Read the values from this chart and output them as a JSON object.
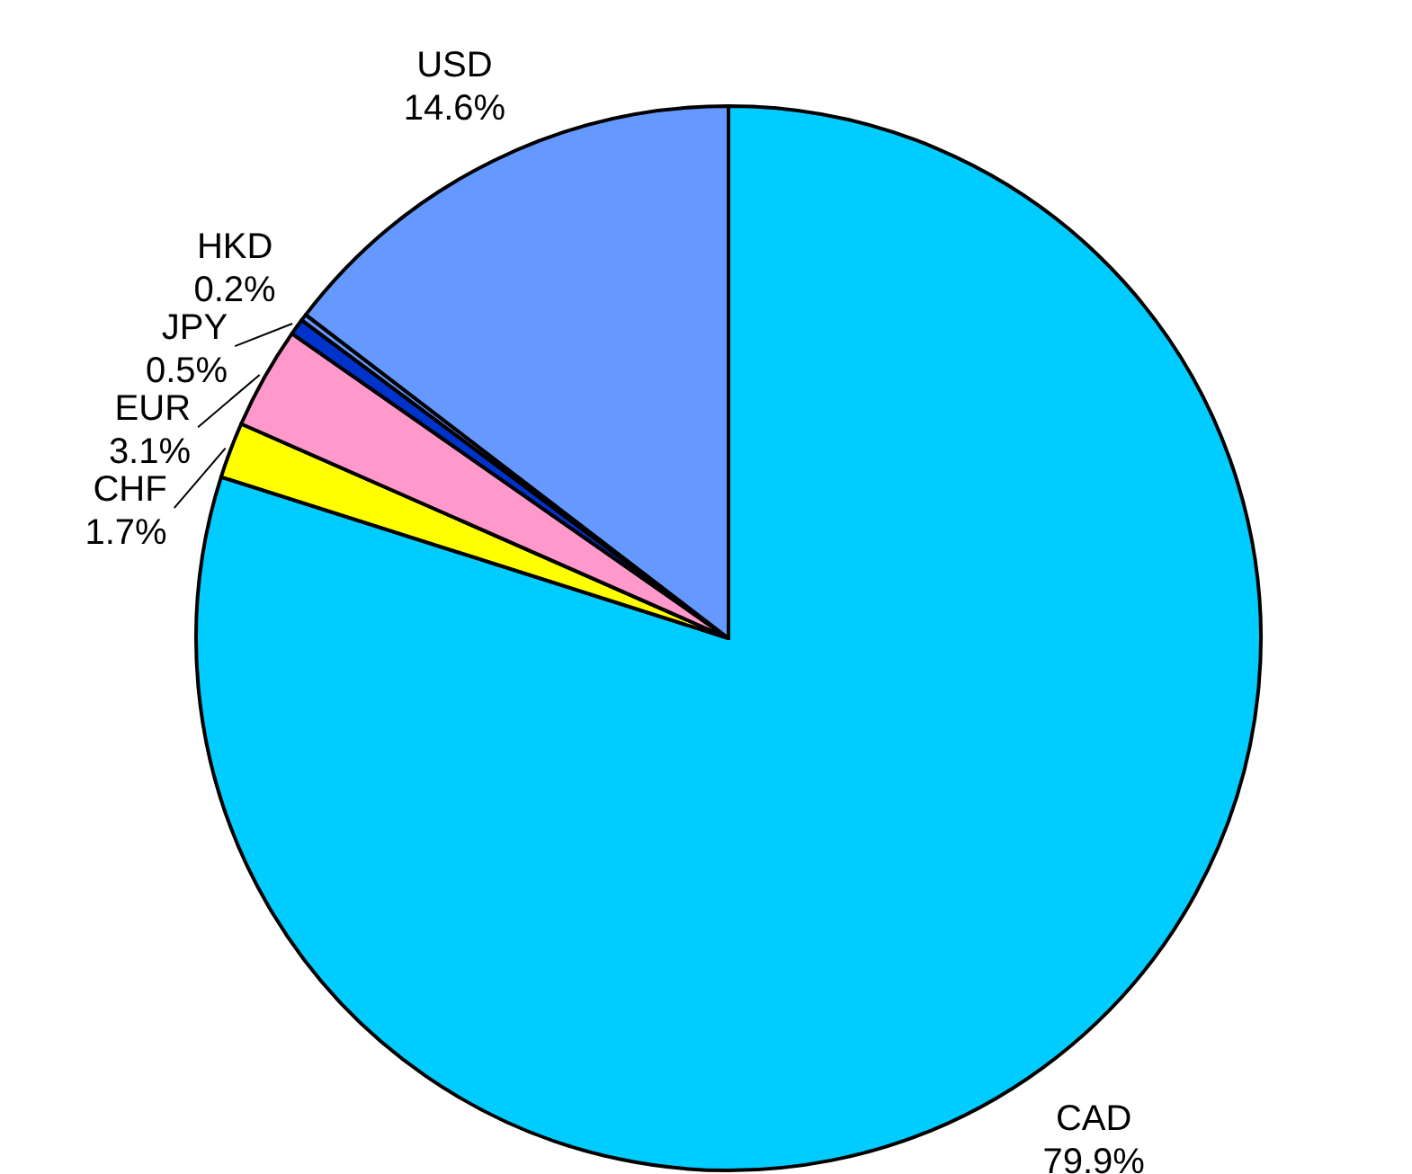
{
  "chart_data": {
    "type": "pie",
    "categories": [
      "CAD",
      "CHF",
      "EUR",
      "JPY",
      "HKD",
      "USD"
    ],
    "values": [
      79.9,
      1.7,
      3.1,
      0.5,
      0.2,
      14.6
    ],
    "value_labels": [
      "79.9%",
      "1.7%",
      "3.1%",
      "0.5%",
      "0.2%",
      "14.6%"
    ],
    "colors": [
      "#00ccff",
      "#ffff00",
      "#ff99cc",
      "#0033cc",
      "#6699ff",
      "#6699ff"
    ],
    "legend": false
  }
}
